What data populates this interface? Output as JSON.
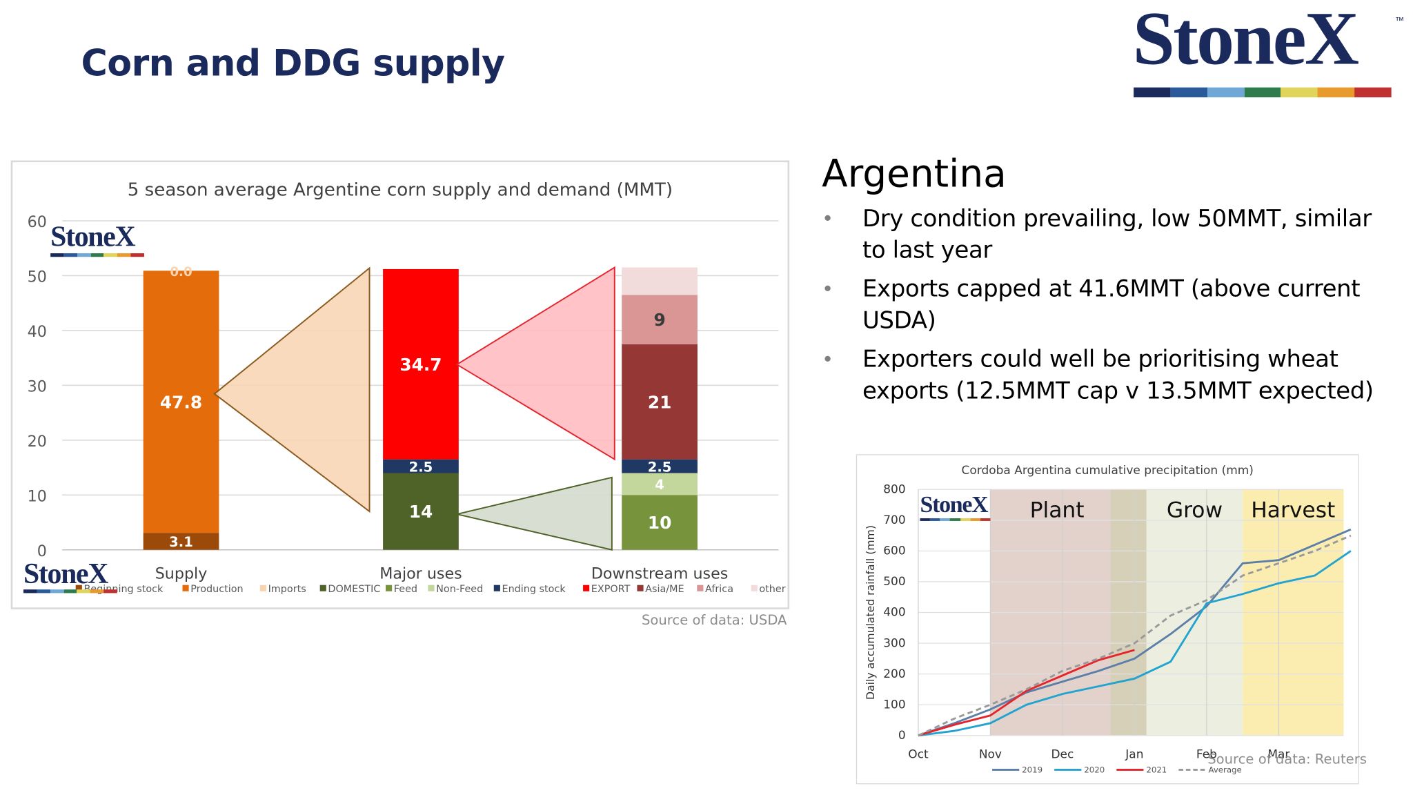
{
  "slide": {
    "title": "Corn and DDG supply",
    "brand": "StoneX",
    "brand_tm": "™",
    "brand_colors": [
      "#1b2a5c",
      "#2a5a9a",
      "#6fa8d6",
      "#2e7b4b",
      "#e0d45a",
      "#e89a2c",
      "#c0302e"
    ]
  },
  "left_chart_panel": {
    "source": "Source of data: USDA",
    "logo": "StoneX"
  },
  "right_text": {
    "heading": "Argentina",
    "bullets": [
      "Dry condition prevailing, low 50MMT, similar to last year",
      "Exports capped at 41.6MMT (above current USDA)",
      "Exporters could well be prioritising wheat exports (12.5MMT cap v 13.5MMT expected)"
    ],
    "bullet_glyph": "•"
  },
  "precip_panel": {
    "source": "Source of data: Reuters",
    "logo": "StoneX"
  },
  "chart_data": [
    {
      "type": "bar",
      "stacked": true,
      "title": "5 season average Argentine corn supply and demand (MMT)",
      "categories": [
        "Supply",
        "Major uses",
        "Downstream uses"
      ],
      "ylim": [
        0,
        60
      ],
      "yticks": [
        0,
        10,
        20,
        30,
        40,
        50,
        60
      ],
      "grid": true,
      "legend_position": "bottom",
      "series": [
        {
          "name": "Beginning stock",
          "color": "#9c4a0a",
          "values": [
            3.1,
            0,
            0
          ],
          "label": "3.1"
        },
        {
          "name": "Production",
          "color": "#e46c0a",
          "values": [
            47.8,
            0,
            0
          ],
          "label": "47.8"
        },
        {
          "name": "Imports",
          "color": "#f9d3b0",
          "values": [
            0.0,
            0,
            0
          ],
          "label": "0.0"
        },
        {
          "name": "DOMESTIC",
          "color": "#4f6228",
          "values": [
            0,
            14,
            0
          ],
          "label": "14"
        },
        {
          "name": "Feed",
          "color": "#77933c",
          "values": [
            0,
            0,
            10
          ],
          "label": "10"
        },
        {
          "name": "Non-Feed",
          "color": "#c3d69b",
          "values": [
            0,
            0,
            4
          ],
          "label": "4"
        },
        {
          "name": "Ending stock",
          "color": "#1f3864",
          "values": [
            0,
            2.5,
            2.5
          ],
          "label": "2.5"
        },
        {
          "name": "EXPORT",
          "color": "#ff0000",
          "values": [
            0,
            34.7,
            0
          ],
          "label": "34.7"
        },
        {
          "name": "Asia/ME",
          "color": "#953735",
          "values": [
            0,
            0,
            21
          ],
          "label": "21"
        },
        {
          "name": "Africa",
          "color": "#d99694",
          "values": [
            0,
            0,
            9
          ],
          "label": "9"
        },
        {
          "name": "other",
          "color": "#f2dcdb",
          "values": [
            0,
            0,
            5
          ],
          "label": ""
        }
      ],
      "connectors": [
        {
          "from": "Supply",
          "to": "Major uses",
          "color": "#f9d3b0",
          "stroke": "#8b5a1f"
        },
        {
          "from": "Major uses",
          "to": "Downstream uses",
          "color": "#ffb8be",
          "stroke": "#e3262d"
        },
        {
          "from": "Major uses",
          "to": "Downstream uses",
          "color": "#d4dccd",
          "stroke": "#4f6228"
        }
      ]
    },
    {
      "type": "line",
      "title": "Cordoba Argentina cumulative precipitation (mm)",
      "xlabel": "",
      "ylabel": "Daily accumulated rainfall (mm)",
      "ylim": [
        0,
        800
      ],
      "yticks": [
        0,
        100,
        200,
        300,
        400,
        500,
        600,
        700,
        800
      ],
      "x_ticks": [
        "Oct",
        "Nov",
        "Dec",
        "Jan",
        "Feb",
        "Mar"
      ],
      "x": [
        "Oct",
        "Oct 15",
        "Nov",
        "Nov 15",
        "Dec",
        "Dec 15",
        "Jan",
        "Jan 15",
        "Feb",
        "Feb 15",
        "Mar",
        "Mar 15",
        "Apr"
      ],
      "legend_position": "bottom",
      "periods": [
        {
          "label": "Plant",
          "start": "Nov",
          "end": "Jan",
          "color": "#e2d2cb"
        },
        {
          "label": "",
          "start": "Dec 20",
          "end": "Jan 5",
          "color": "#d6d0b8"
        },
        {
          "label": "Grow",
          "start": "Jan 5",
          "end": "Feb 15",
          "color": "#ecefe0"
        },
        {
          "label": "Harvest",
          "start": "Feb 15",
          "end": "Apr",
          "color": "#fbedb0"
        }
      ],
      "series": [
        {
          "name": "2019",
          "color": "#5b7fa8",
          "style": "solid",
          "values": [
            0,
            40,
            85,
            140,
            175,
            210,
            250,
            330,
            420,
            560,
            570,
            620,
            670
          ]
        },
        {
          "name": "2020",
          "color": "#23a3cf",
          "style": "solid",
          "values": [
            0,
            15,
            40,
            100,
            135,
            160,
            185,
            240,
            430,
            460,
            495,
            520,
            600
          ]
        },
        {
          "name": "2021",
          "color": "#e5252b",
          "style": "solid",
          "values": [
            0,
            35,
            65,
            145,
            195,
            245,
            278,
            null,
            null,
            null,
            null,
            null,
            null
          ]
        },
        {
          "name": "Average",
          "color": "#999999",
          "style": "dashed",
          "values": [
            0,
            55,
            100,
            150,
            210,
            250,
            300,
            390,
            440,
            520,
            560,
            600,
            650
          ]
        }
      ]
    }
  ]
}
